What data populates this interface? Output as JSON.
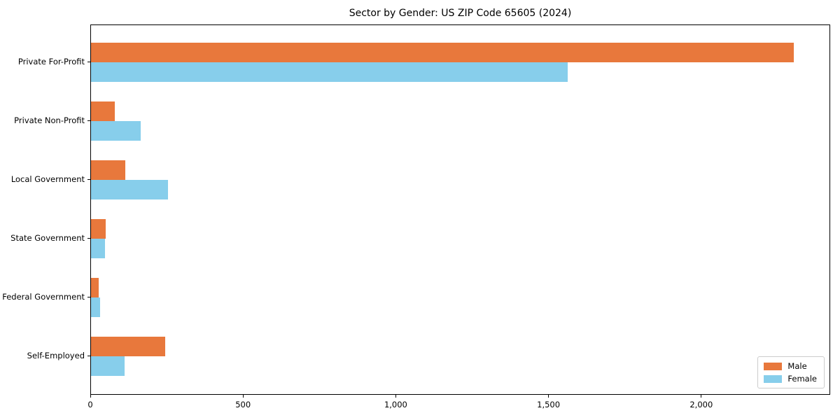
{
  "title": "Sector by Gender: US ZIP Code 65605 (2024)",
  "chart_data": {
    "type": "bar",
    "orientation": "horizontal",
    "title": "Sector by Gender: US ZIP Code 65605 (2024)",
    "categories": [
      "Private For-Profit",
      "Private Non-Profit",
      "Local Government",
      "State Government",
      "Federal Government",
      "Self-Employed"
    ],
    "series": [
      {
        "name": "Male",
        "color": "#e8783c",
        "values": [
          2300,
          78,
          112,
          48,
          26,
          243
        ]
      },
      {
        "name": "Female",
        "color": "#87ceeb",
        "values": [
          1560,
          163,
          252,
          46,
          29,
          110
        ]
      }
    ],
    "xlabel": "",
    "ylabel": "",
    "xlim": [
      0,
      2422
    ],
    "xticks": [
      0,
      500,
      1000,
      1500,
      2000
    ],
    "xtick_labels": [
      "0",
      "500",
      "1,000",
      "1,500",
      "2,000"
    ],
    "grid": false,
    "legend_position": "lower right",
    "background_color": "#ffffff",
    "spine_color": "#000000"
  }
}
